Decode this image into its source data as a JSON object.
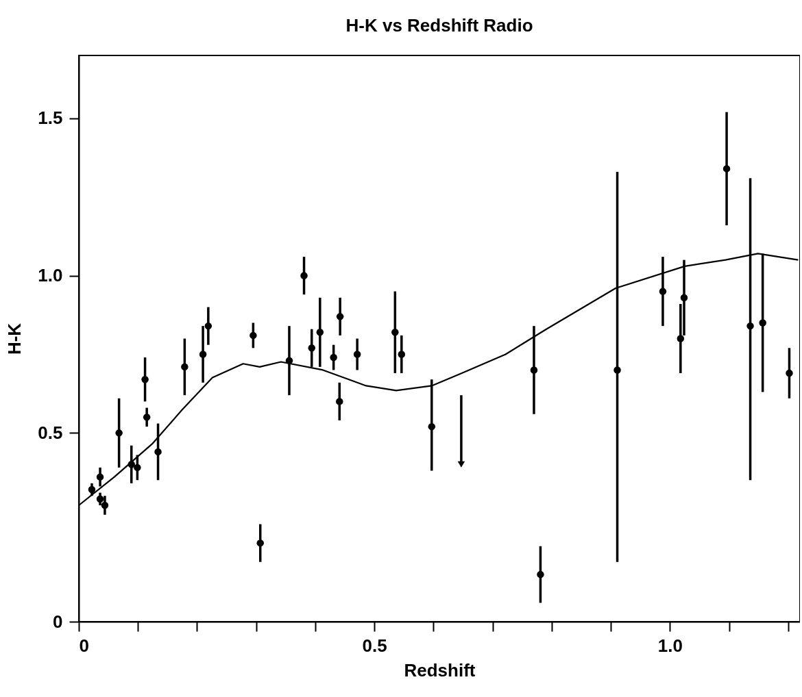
{
  "chart_data": {
    "type": "scatter",
    "title": "H-K vs Redshift  Radio",
    "xlabel": "Redshift",
    "ylabel": "H-K",
    "xlim": [
      0,
      1.22
    ],
    "ylim": [
      -0.1,
      1.7
    ],
    "xticks": [
      0,
      {
        "value": 0.1,
        "label": null
      },
      {
        "value": 0.2,
        "label": null
      },
      {
        "value": 0.3,
        "label": null
      },
      {
        "value": 0.4,
        "label": null
      },
      {
        "value": 0.5,
        "label": "0.5"
      },
      {
        "value": 0.6,
        "label": null
      },
      {
        "value": 0.7,
        "label": null
      },
      {
        "value": 0.8,
        "label": null
      },
      {
        "value": 0.9,
        "label": null
      },
      {
        "value": 1.0,
        "label": "1.0"
      },
      {
        "value": 1.1,
        "label": null
      },
      {
        "value": 1.2,
        "label": null
      }
    ],
    "yticks": [
      {
        "value": -0.1,
        "label": "0"
      },
      0.5,
      {
        "value": 1.0,
        "label": "1.0"
      },
      1.5
    ],
    "grid": false,
    "series": [
      {
        "color": "#000000",
        "marker": "circle",
        "x": [
          0.022,
          0.036,
          0.036,
          0.044,
          0.068,
          0.089,
          0.099,
          0.112,
          0.115,
          0.134,
          0.179,
          0.21,
          0.219,
          0.295,
          0.307,
          0.356,
          0.381,
          0.394,
          0.408,
          0.431,
          0.442,
          0.441,
          0.471,
          0.535,
          0.546,
          0.597,
          0.77,
          0.781,
          0.911,
          0.988,
          1.018,
          1.024,
          1.096,
          1.136,
          1.157,
          1.202
        ],
        "values": [
          0.32,
          0.36,
          0.29,
          0.27,
          0.5,
          0.4,
          0.39,
          0.67,
          0.55,
          0.44,
          0.71,
          0.75,
          0.84,
          0.81,
          0.15,
          0.73,
          1.0,
          0.77,
          0.82,
          0.74,
          0.87,
          0.6,
          0.75,
          0.82,
          0.75,
          0.52,
          0.7,
          0.05,
          0.7,
          0.95,
          0.8,
          0.93,
          1.34,
          0.84,
          0.85,
          0.69
        ],
        "errors": [
          0.02,
          0.03,
          0.02,
          0.03,
          0.11,
          0.06,
          0.04,
          0.07,
          0.03,
          0.09,
          0.09,
          0.09,
          0.06,
          0.04,
          0.06,
          0.11,
          0.06,
          0.06,
          0.11,
          0.04,
          0.06,
          0.06,
          0.05,
          0.13,
          0.06,
          [
            0.38,
            0.67
          ],
          0.14,
          0.09,
          [
            0.09,
            1.33
          ],
          0.11,
          0.11,
          0.12,
          0.18,
          [
            0.35,
            1.31
          ],
          0.22,
          0.08
        ]
      },
      {
        "color": "#000000",
        "marker": "triangle",
        "x": [
          0.647
        ],
        "values": [
          0.4
        ],
        "errors": [
          [
            0.4,
            0.62
          ]
        ]
      },
      {
        "type": "line",
        "color": "#000000",
        "line_style": "solid",
        "x": [
          0,
          0.06,
          0.124,
          0.175,
          0.226,
          0.278,
          0.306,
          0.342,
          0.413,
          0.486,
          0.537,
          0.597,
          0.648,
          0.722,
          0.791,
          0.908,
          1.025,
          1.094,
          1.149,
          1.217
        ],
        "values": [
          0.27,
          0.36,
          0.465,
          0.574,
          0.676,
          0.72,
          0.71,
          0.726,
          0.7,
          0.65,
          0.635,
          0.65,
          0.69,
          0.75,
          0.83,
          0.96,
          1.03,
          1.05,
          1.07,
          1.05
        ]
      }
    ]
  }
}
